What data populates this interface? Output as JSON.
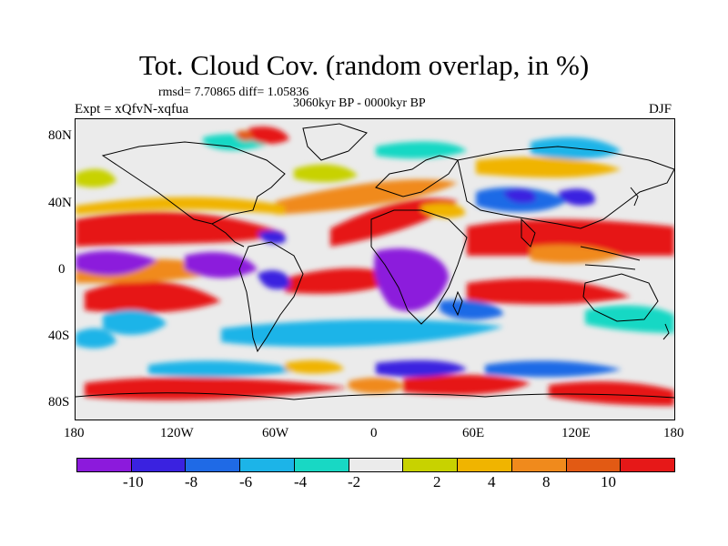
{
  "title": "Tot. Cloud Cov. (random overlap, in %)",
  "stats": "rmsd= 7.70865 diff= 1.05836",
  "period": "3060kyr BP - 0000kyr BP",
  "expt": "Expt = xQfvN-xqfua",
  "season": "DJF",
  "y_ticks": [
    "80N",
    "40N",
    "0",
    "40S",
    "80S"
  ],
  "x_ticks": [
    "180",
    "120W",
    "60W",
    "0",
    "60E",
    "120E",
    "180"
  ],
  "colorbar": {
    "colors": [
      "#8c1adc",
      "#3a22e0",
      "#1f6ae6",
      "#1cb4e8",
      "#18d8c4",
      "#ebebeb",
      "#c8d200",
      "#f0b400",
      "#f08a1c",
      "#e25a14",
      "#e61818"
    ],
    "labels": [
      "-10",
      "-8",
      "-6",
      "-4",
      "-2",
      "2",
      "4",
      "8",
      "10"
    ]
  },
  "colors": {
    "land_outline": "#000000",
    "background_near_zero": "#ebebeb"
  }
}
